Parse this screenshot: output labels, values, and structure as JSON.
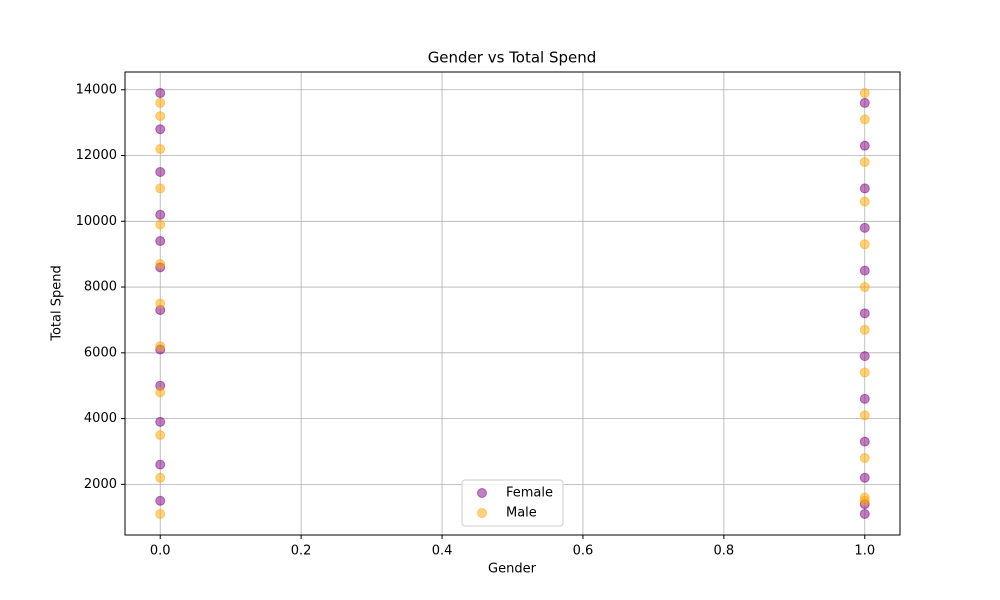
{
  "chart_data": {
    "type": "scatter",
    "title": "Gender vs Total Spend",
    "x_label": "Gender",
    "y_label": "Total Spend",
    "xlim": [
      -0.05,
      1.05
    ],
    "ylim": [
      460,
      14540
    ],
    "xticks": [
      {
        "value": 0,
        "label": "0.0"
      },
      0.2,
      0.4,
      0.6,
      0.8,
      {
        "value": 1,
        "label": "1.0"
      }
    ],
    "yticks": [
      2000,
      4000,
      6000,
      8000,
      10000,
      12000,
      14000
    ],
    "grid": true,
    "legend": "lower center",
    "series": [
      {
        "name": "Female",
        "color": "purple",
        "x": [
          0,
          0,
          0,
          0,
          0,
          0,
          0,
          0,
          0,
          0,
          0,
          0,
          1,
          1,
          1,
          1,
          1,
          1,
          1,
          1,
          1,
          1,
          1,
          1
        ],
        "values": [
          13900,
          12800,
          11500,
          10200,
          9400,
          8600,
          7300,
          6100,
          5000,
          3900,
          2600,
          1500,
          13600,
          12300,
          11000,
          9800,
          8500,
          7200,
          5900,
          4600,
          3300,
          2200,
          1400,
          1100
        ]
      },
      {
        "name": "Male",
        "color": "orange",
        "x": [
          0,
          0,
          0,
          0,
          0,
          0,
          0,
          0,
          0,
          0,
          0,
          0,
          1,
          1,
          1,
          1,
          1,
          1,
          1,
          1,
          1,
          1,
          1,
          1
        ],
        "values": [
          13600,
          13200,
          12200,
          11000,
          9900,
          8700,
          7500,
          6200,
          4800,
          3500,
          2200,
          1100,
          13900,
          13100,
          11800,
          10600,
          9300,
          8000,
          6700,
          5400,
          4100,
          2800,
          1600,
          1500
        ]
      }
    ]
  }
}
